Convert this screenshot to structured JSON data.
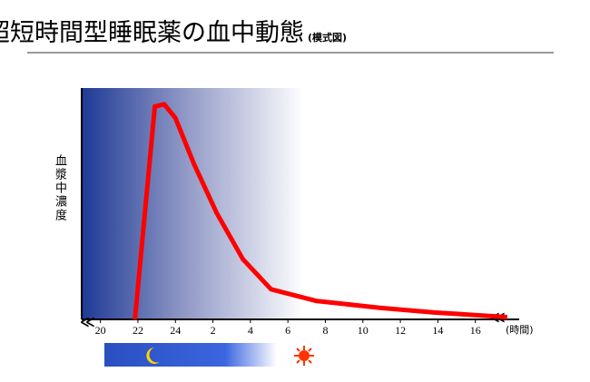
{
  "chart_data": {
    "type": "line",
    "title": "超短時間型睡眠薬の血中動態",
    "subtitle": "(模式図)",
    "y_label": "血漿中濃度",
    "x_label": "(時間)",
    "x": [
      1.84,
      2.9,
      3.4,
      4.0,
      5.0,
      6.2,
      7.6,
      9.1,
      11.5,
      14.9,
      17.8,
      21.7
    ],
    "values": [
      0,
      92,
      93,
      87,
      67,
      46,
      26,
      13,
      8,
      5,
      3,
      1
    ],
    "color": "#ff0000",
    "xlim": [
      -1,
      22
    ],
    "ylim": [
      0,
      100
    ],
    "xticks": [
      {
        "value": 0,
        "label": "20"
      },
      {
        "value": 2,
        "label": "22"
      },
      {
        "value": 4,
        "label": "24"
      },
      {
        "value": 6,
        "label": "2"
      },
      {
        "value": 8,
        "label": "4"
      },
      {
        "value": 10,
        "label": "6"
      },
      {
        "value": 12,
        "label": "8"
      },
      {
        "value": 14,
        "label": "10"
      },
      {
        "value": 16,
        "label": "12"
      },
      {
        "value": 18,
        "label": "14"
      },
      {
        "value": 20,
        "label": "16"
      }
    ]
  }
}
